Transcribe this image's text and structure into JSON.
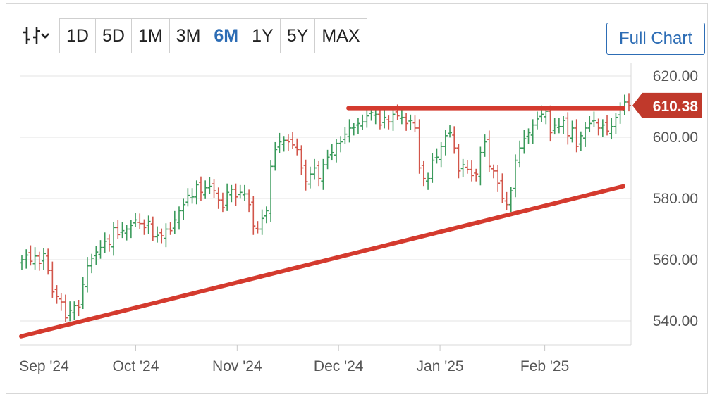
{
  "toolbar": {
    "chart_type_icon": "ohlc-bars-icon",
    "ranges": [
      "1D",
      "5D",
      "1M",
      "3M",
      "6M",
      "1Y",
      "5Y",
      "MAX"
    ],
    "active_range": "6M",
    "full_chart_label": "Full Chart"
  },
  "colors": {
    "up": "#3a9a5b",
    "down": "#d2554a",
    "trendline": "#d43a2e",
    "accent": "#2d6db5",
    "badge": "#c0392b"
  },
  "chart_data": {
    "type": "ohlc",
    "title": "",
    "xlabel": "",
    "ylabel": "",
    "ylim": [
      532,
      626
    ],
    "y_ticks": [
      "620.00",
      "600.00",
      "580.00",
      "560.00",
      "540.00"
    ],
    "y_tick_values": [
      620,
      600,
      580,
      560,
      540
    ],
    "x_ticks": [
      {
        "label": "Sep '24",
        "date": "2024-09-03"
      },
      {
        "label": "Oct '24",
        "date": "2024-10-01"
      },
      {
        "label": "Nov '24",
        "date": "2024-11-01"
      },
      {
        "label": "Dec '24",
        "date": "2024-12-02"
      },
      {
        "label": "Jan '25",
        "date": "2025-01-02"
      },
      {
        "label": "Feb '25",
        "date": "2025-02-03"
      }
    ],
    "last_value": "610.38",
    "close_prices": [
      560.0,
      561.5,
      559.5,
      561.2,
      558.8,
      562.0,
      556.5,
      549.5,
      548.0,
      546.2,
      541.0,
      543.5,
      545.0,
      544.5,
      552.0,
      558.0,
      560.5,
      562.5,
      564.0,
      566.0,
      565.0,
      570.5,
      568.2,
      569.5,
      570.0,
      571.2,
      573.0,
      571.8,
      570.5,
      572.5,
      567.5,
      568.0,
      567.8,
      570.0,
      569.5,
      573.0,
      576.0,
      578.0,
      581.0,
      580.5,
      584.5,
      582.0,
      583.5,
      584.0,
      582.5,
      579.5,
      577.0,
      582.0,
      583.0,
      580.5,
      582.0,
      581.5,
      578.0,
      571.0,
      570.0,
      573.5,
      576.0,
      590.5,
      596.0,
      598.5,
      599.0,
      598.5,
      597.5,
      596.0,
      590.0,
      585.5,
      588.0,
      590.0,
      586.5,
      591.0,
      593.5,
      595.0,
      598.0,
      598.5,
      601.0,
      603.0,
      603.2,
      604.5,
      605.0,
      607.0,
      608.0,
      607.5,
      604.0,
      606.5,
      605.0,
      607.5,
      607.0,
      606.5,
      604.5,
      605.5,
      603.0,
      590.0,
      586.5,
      586.5,
      592.5,
      593.5,
      597.0,
      600.5,
      601.5,
      596.5,
      589.0,
      591.0,
      589.5,
      587.5,
      588.0,
      595.0,
      598.5,
      590.5,
      589.0,
      585.0,
      580.0,
      578.0,
      582.5,
      592.5,
      596.5,
      599.5,
      601.5,
      604.0,
      606.0,
      607.5,
      608.5,
      601.5,
      604.0,
      603.5,
      605.5,
      600.5,
      603.0,
      597.0,
      600.5,
      603.0,
      604.5,
      605.5,
      603.0,
      604.0,
      602.0,
      603.5,
      606.5,
      609.5,
      611.5,
      610.38
    ],
    "series": [
      {
        "type": "horizontal_line",
        "y": 609.5,
        "x_start": "2024-12-05",
        "x_end": "2025-02-27"
      },
      {
        "type": "trendline",
        "points": [
          {
            "date": "2024-08-27",
            "y": 535.0
          },
          {
            "date": "2025-02-27",
            "y": 584.0
          }
        ]
      }
    ]
  }
}
